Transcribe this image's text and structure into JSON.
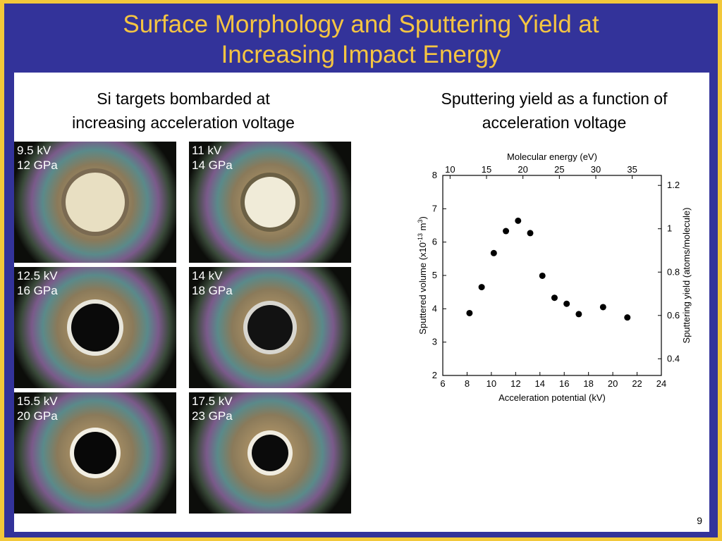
{
  "slide": {
    "title_line1": "Surface Morphology and Sputtering Yield at",
    "title_line2": "Increasing Impact Energy",
    "page_number": "9"
  },
  "left": {
    "caption_line1": "Si targets bombarded at",
    "caption_line2": "increasing acceleration voltage",
    "images": [
      {
        "voltage": "9.5 kV",
        "pressure": "12 GPa"
      },
      {
        "voltage": "11 kV",
        "pressure": "14 GPa"
      },
      {
        "voltage": "12.5 kV",
        "pressure": "16 GPa"
      },
      {
        "voltage": "14 kV",
        "pressure": "18 GPa"
      },
      {
        "voltage": "15.5 kV",
        "pressure": "20 GPa"
      },
      {
        "voltage": "17.5 kV",
        "pressure": "23 GPa"
      }
    ]
  },
  "right": {
    "caption_line1": "Sputtering yield as a function of",
    "caption_line2": "acceleration voltage"
  },
  "chart_data": {
    "type": "scatter",
    "xlabel": "Acceleration potential (kV)",
    "ylabel_main": "Sputtered volume (x10",
    "ylabel_exp1": "-13",
    "ylabel_unit": " m",
    "ylabel_exp2": "3",
    "ylabel_close": ")",
    "top_axis_label": "Molecular energy (eV)",
    "right_axis_label": "Sputtering yield (atoms/molecule)",
    "xlim": [
      6,
      24
    ],
    "ylim": [
      2,
      8
    ],
    "x_ticks": [
      "6",
      "8",
      "10",
      "12",
      "14",
      "16",
      "18",
      "20",
      "22",
      "24"
    ],
    "y_ticks": [
      "2",
      "3",
      "4",
      "5",
      "6",
      "7",
      "8"
    ],
    "top_ticks": [
      "10",
      "15",
      "20",
      "25",
      "30",
      "35"
    ],
    "top_tick_x": [
      6.6,
      9.6,
      12.6,
      15.6,
      18.6,
      21.6
    ],
    "right_ticks": [
      "0.4",
      "0.6",
      "0.8",
      "1",
      "1.2"
    ],
    "right_tick_y": [
      2.5,
      3.8,
      5.1,
      6.4,
      7.7
    ],
    "grid": false,
    "points": [
      {
        "x": 8.2,
        "y": 3.87
      },
      {
        "x": 9.2,
        "y": 4.65
      },
      {
        "x": 10.2,
        "y": 5.67
      },
      {
        "x": 11.2,
        "y": 6.33
      },
      {
        "x": 12.2,
        "y": 6.64
      },
      {
        "x": 13.2,
        "y": 6.27
      },
      {
        "x": 14.2,
        "y": 4.99
      },
      {
        "x": 15.2,
        "y": 4.33
      },
      {
        "x": 16.2,
        "y": 4.15
      },
      {
        "x": 17.2,
        "y": 3.84
      },
      {
        "x": 19.2,
        "y": 4.05
      },
      {
        "x": 21.2,
        "y": 3.74
      }
    ]
  },
  "colors": {
    "border": "#f2c83a",
    "background": "#33339a",
    "title": "#f5c542",
    "content": "#ffffff"
  }
}
